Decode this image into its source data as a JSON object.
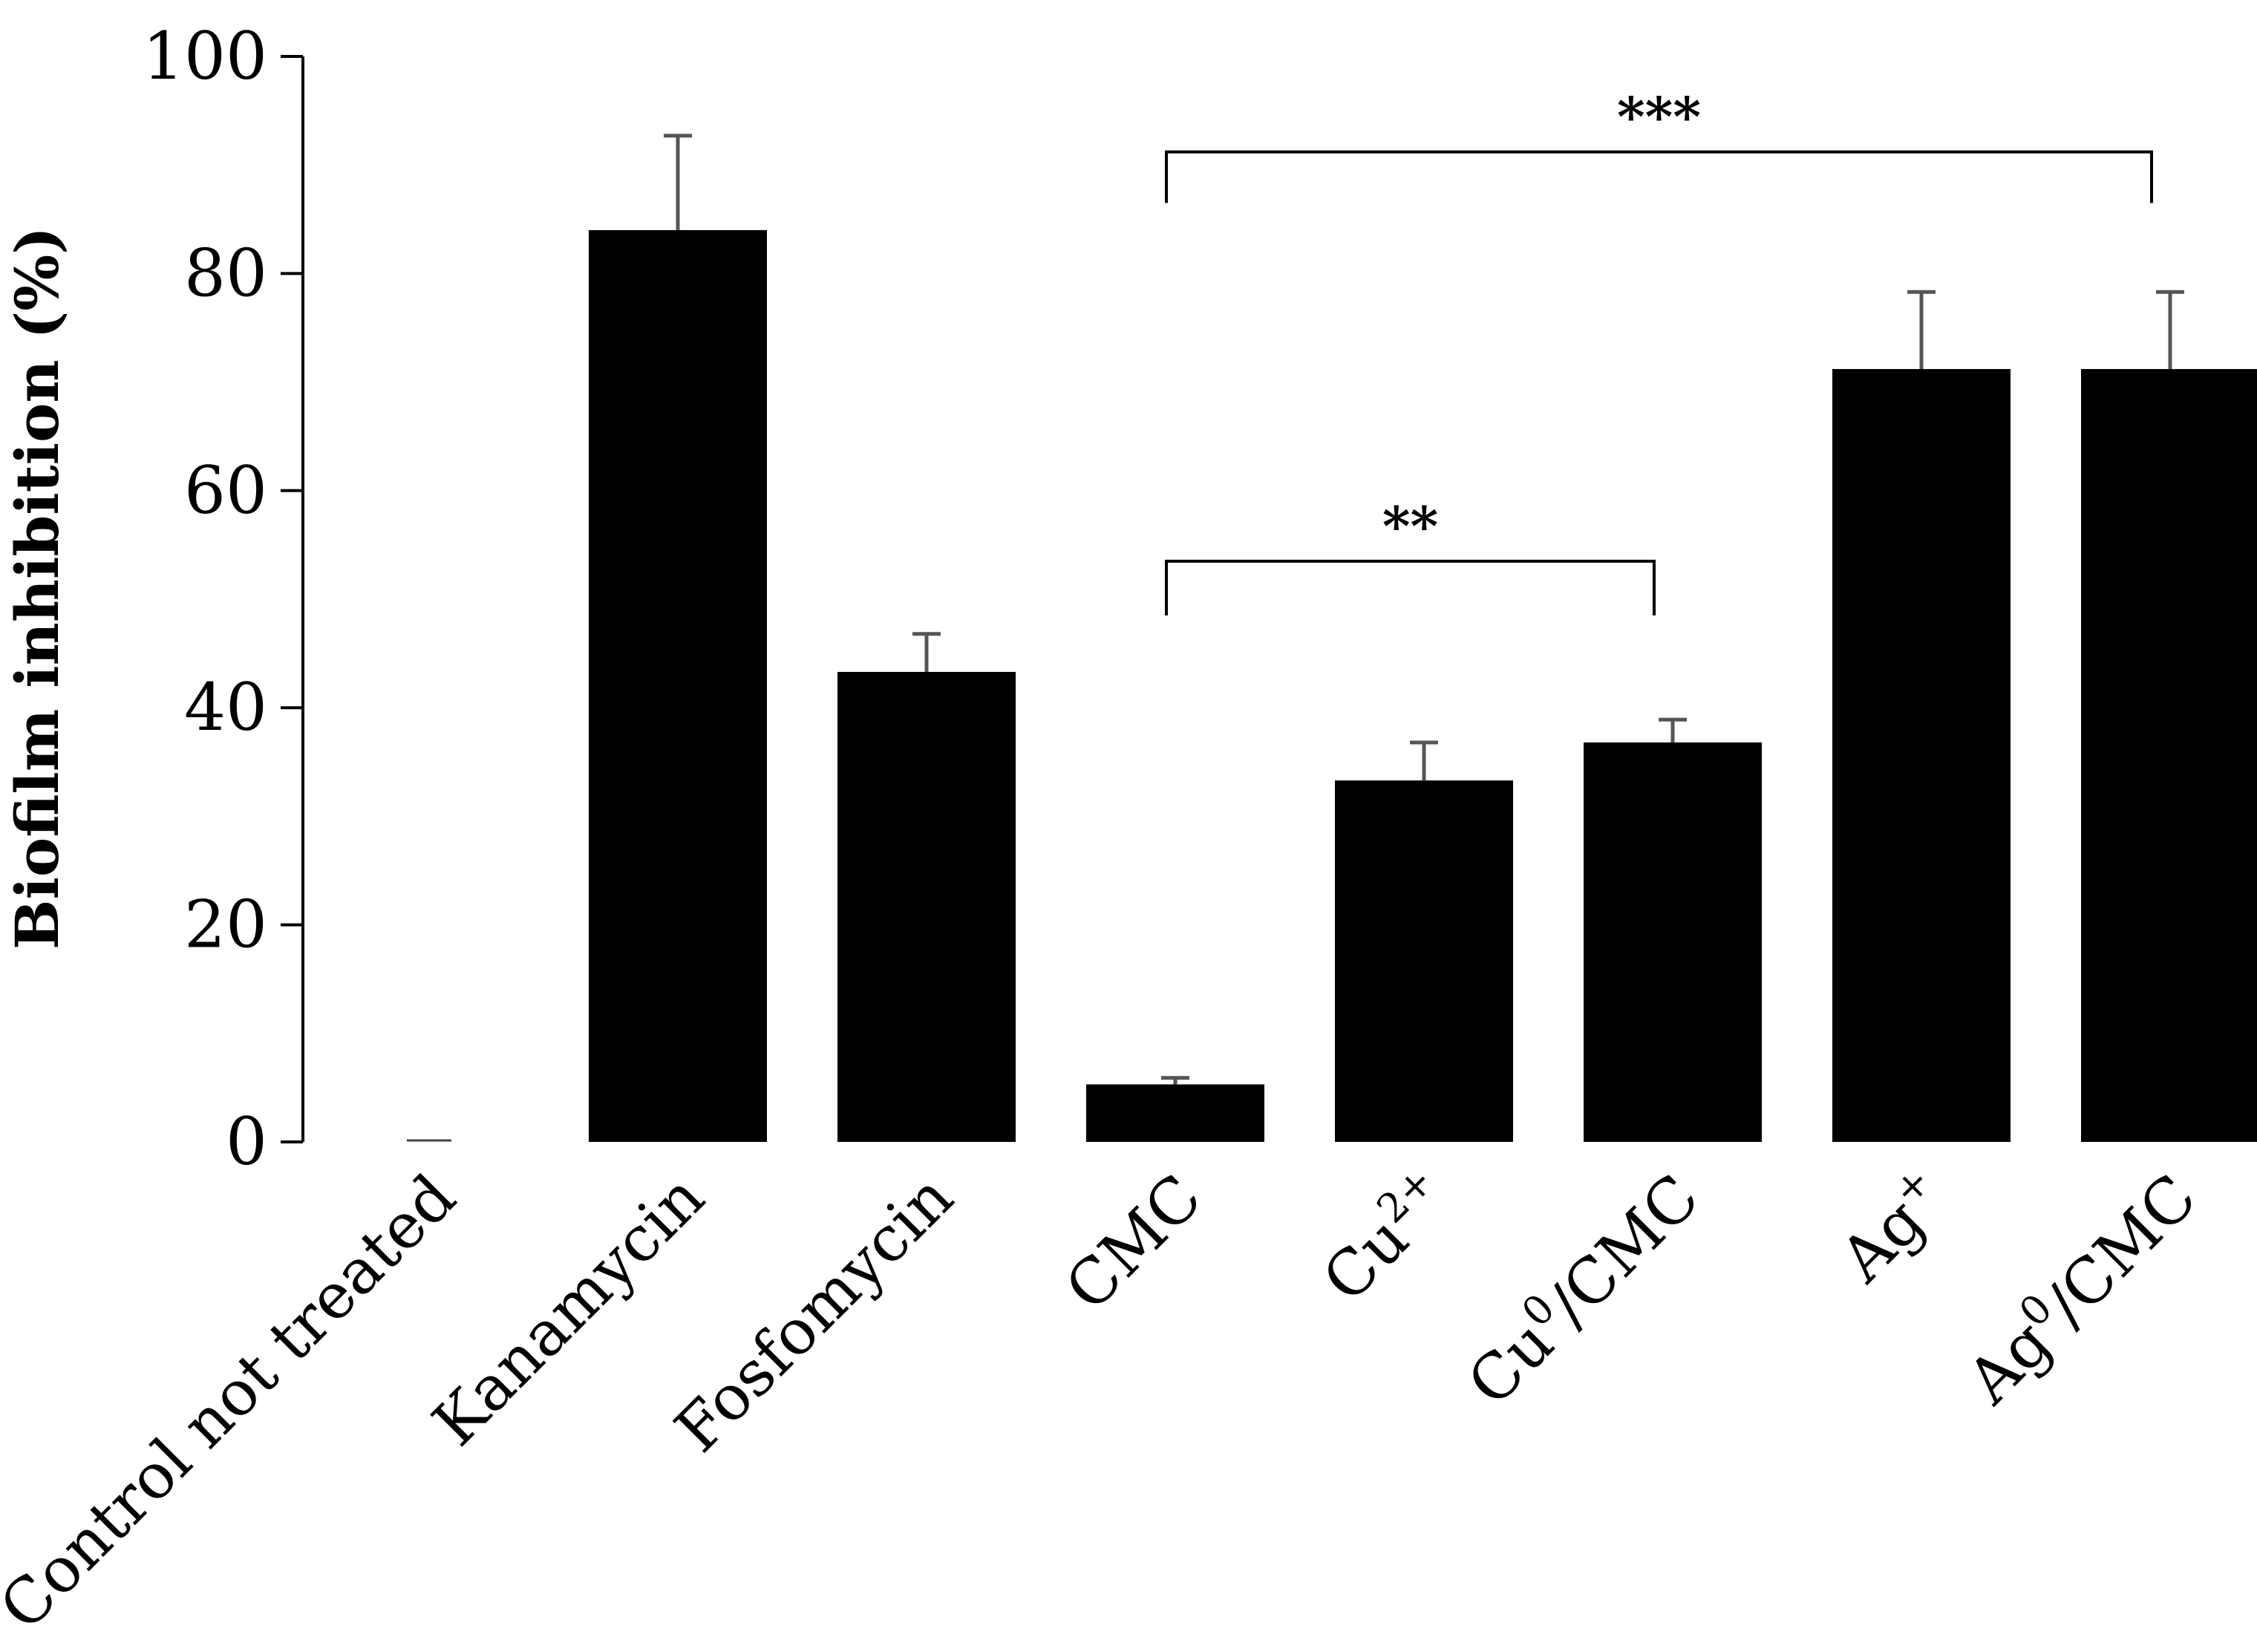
{
  "chart_data": {
    "type": "bar",
    "title": "",
    "xlabel": "",
    "ylabel": "Biofilm inhibition (%)",
    "ylim": [
      0,
      100
    ],
    "yticks": [
      0,
      20,
      40,
      60,
      80,
      100
    ],
    "grid": false,
    "legend": "none",
    "bar_color": "#000000",
    "error_color": "#555555",
    "categories": [
      {
        "label": "Control not treated",
        "value": 0,
        "error": 0
      },
      {
        "label": "Kanamycin",
        "value": 84,
        "error": 8.7
      },
      {
        "label": "Fosfomycin",
        "value": 43.3,
        "error": 3.5
      },
      {
        "label": "CMC",
        "value": 5.3,
        "error": 0.6
      },
      {
        "label": "Cu",
        "sup": "2+",
        "value": 33.3,
        "error": 3.5
      },
      {
        "label": "Cu",
        "sup": "0",
        "suffix": "/CMC",
        "value": 36.8,
        "error": 2.1
      },
      {
        "label": "Ag",
        "sup": "+",
        "value": 71.2,
        "error": 7.1
      },
      {
        "label": "Ag",
        "sup": "0",
        "suffix": "/CMC",
        "value": 71.2,
        "error": 7.1
      }
    ],
    "annotations": [
      {
        "text": "***",
        "from": 3,
        "to": 7,
        "y": 91.2,
        "tick_low": 86.5
      },
      {
        "text": "**",
        "from": 3,
        "to": 5,
        "y": 53.5,
        "tick_low": 48.5
      }
    ]
  }
}
